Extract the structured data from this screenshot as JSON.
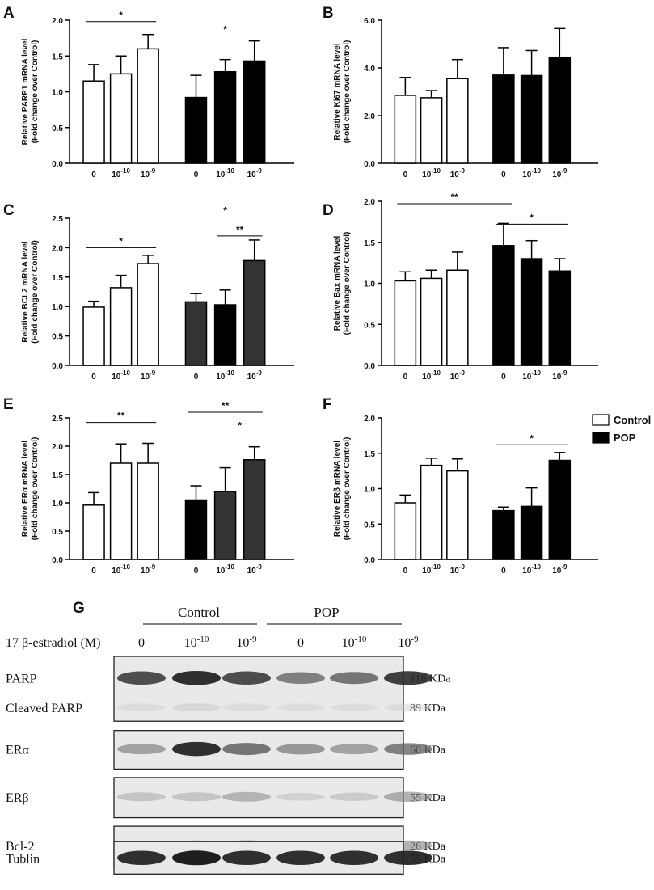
{
  "chart_data": [
    {
      "type": "bar",
      "panel": "A",
      "ylabel": "Relative PARP1 mRNA level",
      "ylabel2": "(Fold change over Control)",
      "ylim": [
        0,
        2.0
      ],
      "yticks": [
        "0.0",
        "0.5",
        "1.0",
        "1.5",
        "2.0"
      ],
      "categories": [
        "0",
        "10-10",
        "10-9",
        "0",
        "10-10",
        "10-9"
      ],
      "values": [
        1.15,
        1.25,
        1.6,
        0.92,
        1.28,
        1.43
      ],
      "errors": [
        0.23,
        0.25,
        0.2,
        0.31,
        0.17,
        0.28
      ],
      "fills": [
        "#ffffff",
        "#ffffff",
        "#ffffff",
        "#000000",
        "#000000",
        "#000000"
      ],
      "significance": [
        {
          "from": 0,
          "to": 2,
          "label": "*",
          "y": 1.98
        },
        {
          "from": 3,
          "to": 5,
          "label": "*",
          "y": 1.78
        }
      ]
    },
    {
      "type": "bar",
      "panel": "B",
      "ylabel": "Relative Ki67 mRNA level",
      "ylabel2": "(Fold change over Control)",
      "ylim": [
        0,
        6.0
      ],
      "yticks": [
        "0.0",
        "2.0",
        "4.0",
        "6.0"
      ],
      "categories": [
        "0",
        "10-10",
        "10-9",
        "0",
        "10-10",
        "10-9"
      ],
      "values": [
        2.85,
        2.75,
        3.55,
        3.7,
        3.68,
        4.45
      ],
      "errors": [
        0.75,
        0.3,
        0.8,
        1.15,
        1.05,
        1.2
      ],
      "fills": [
        "#ffffff",
        "#ffffff",
        "#ffffff",
        "#000000",
        "#000000",
        "#000000"
      ],
      "significance": []
    },
    {
      "type": "bar",
      "panel": "C",
      "ylabel": "Relative BCL2 mRNA level",
      "ylabel2": "(Fold change over Control)",
      "ylim": [
        0,
        2.5
      ],
      "yticks": [
        "0.0",
        "0.5",
        "1.0",
        "1.5",
        "2.0",
        "2.5"
      ],
      "categories": [
        "0",
        "10-10",
        "10-9",
        "0",
        "10-10",
        "10-9"
      ],
      "values": [
        0.99,
        1.32,
        1.73,
        1.08,
        1.03,
        1.78
      ],
      "errors": [
        0.1,
        0.21,
        0.14,
        0.14,
        0.25,
        0.35
      ],
      "fills": [
        "#ffffff",
        "#ffffff",
        "#ffffff",
        "#333333",
        "#000000",
        "#333333"
      ],
      "significance": [
        {
          "from": 0,
          "to": 2,
          "label": "*",
          "y": 2.0
        },
        {
          "from": 3,
          "to": 5,
          "label": "*",
          "y": 2.52
        },
        {
          "from": 4,
          "to": 5,
          "label": "**",
          "y": 2.2
        }
      ]
    },
    {
      "type": "bar",
      "panel": "D",
      "ylabel": "Relative Bax mRNA level",
      "ylabel2": "(Fold change over Control)",
      "ylim": [
        0,
        2.0
      ],
      "yticks": [
        "0.0",
        "0.5",
        "1.0",
        "1.5",
        "2.0"
      ],
      "categories": [
        "0",
        "10-10",
        "10-9",
        "0",
        "10-10",
        "10-9"
      ],
      "values": [
        1.03,
        1.06,
        1.16,
        1.46,
        1.3,
        1.15
      ],
      "errors": [
        0.11,
        0.1,
        0.22,
        0.27,
        0.22,
        0.15
      ],
      "fills": [
        "#ffffff",
        "#ffffff",
        "#ffffff",
        "#000000",
        "#000000",
        "#000000"
      ],
      "significance": [
        {
          "from": 0,
          "to": 3,
          "label": "**",
          "y": 1.97
        },
        {
          "from": 3,
          "to": 5,
          "label": "*",
          "y": 1.72
        }
      ]
    },
    {
      "type": "bar",
      "panel": "E",
      "ylabel": "Relative ERα  mRNA level",
      "ylabel2": "(Fold change over Control)",
      "ylim": [
        0,
        2.5
      ],
      "yticks": [
        "0.0",
        "0.5",
        "1.0",
        "1.5",
        "2.0",
        "2.5"
      ],
      "categories": [
        "0",
        "10-10",
        "10-9",
        "0",
        "10-10",
        "10-9"
      ],
      "values": [
        0.96,
        1.7,
        1.7,
        1.05,
        1.2,
        1.76
      ],
      "errors": [
        0.22,
        0.34,
        0.35,
        0.25,
        0.42,
        0.23
      ],
      "fills": [
        "#ffffff",
        "#ffffff",
        "#ffffff",
        "#000000",
        "#333333",
        "#333333"
      ],
      "significance": [
        {
          "from": 0,
          "to": 2,
          "label": "**",
          "y": 2.42
        },
        {
          "from": 3,
          "to": 5,
          "label": "**",
          "y": 2.6
        },
        {
          "from": 4,
          "to": 5,
          "label": "*",
          "y": 2.25
        }
      ]
    },
    {
      "type": "bar",
      "panel": "F",
      "ylabel": "Relative ERβ  mRNA level",
      "ylabel2": "(Fold change over Control)",
      "ylim": [
        0,
        2.0
      ],
      "yticks": [
        "0.0",
        "0.5",
        "1.0",
        "1.5",
        "2.0"
      ],
      "categories": [
        "0",
        "10-10",
        "10-9",
        "0",
        "10-10",
        "10-9"
      ],
      "values": [
        0.8,
        1.33,
        1.25,
        0.69,
        0.75,
        1.4
      ],
      "errors": [
        0.11,
        0.1,
        0.17,
        0.05,
        0.26,
        0.11
      ],
      "fills": [
        "#ffffff",
        "#ffffff",
        "#ffffff",
        "#000000",
        "#000000",
        "#000000"
      ],
      "significance": [
        {
          "from": 3,
          "to": 5,
          "label": "*",
          "y": 1.62
        }
      ]
    }
  ],
  "legend": [
    {
      "label": "Control",
      "color": "#ffffff"
    },
    {
      "label": "POP",
      "color": "#000000"
    }
  ],
  "blot": {
    "panel": "G",
    "groups": [
      "Control",
      "POP"
    ],
    "treatment_label": "17 β-estradiol (M)",
    "lanes": [
      "0",
      "10-10",
      "10-9",
      "0",
      "10-10",
      "10-9"
    ],
    "rows": [
      {
        "protein": "PARP",
        "size": "116 KDa",
        "intensity": [
          0.85,
          0.95,
          0.85,
          0.65,
          0.7,
          0.9
        ]
      },
      {
        "protein": "Cleaved PARP",
        "size": "89 KDa",
        "intensity": [
          0.12,
          0.15,
          0.12,
          0.1,
          0.1,
          0.12
        ]
      },
      {
        "protein": "ERα",
        "size": "60 KDa",
        "intensity": [
          0.5,
          0.95,
          0.7,
          0.55,
          0.5,
          0.65
        ]
      },
      {
        "protein": "ERβ",
        "size": "55 KDa",
        "intensity": [
          0.3,
          0.3,
          0.4,
          0.2,
          0.25,
          0.45
        ]
      },
      {
        "protein": "Bcl-2",
        "size": "26 KDa",
        "intensity": [
          0.25,
          0.45,
          0.5,
          0.3,
          0.3,
          0.45
        ]
      },
      {
        "protein": "Tublin",
        "size": "55 KDa",
        "intensity": [
          0.95,
          1.0,
          0.95,
          0.95,
          0.95,
          0.95
        ]
      }
    ]
  }
}
